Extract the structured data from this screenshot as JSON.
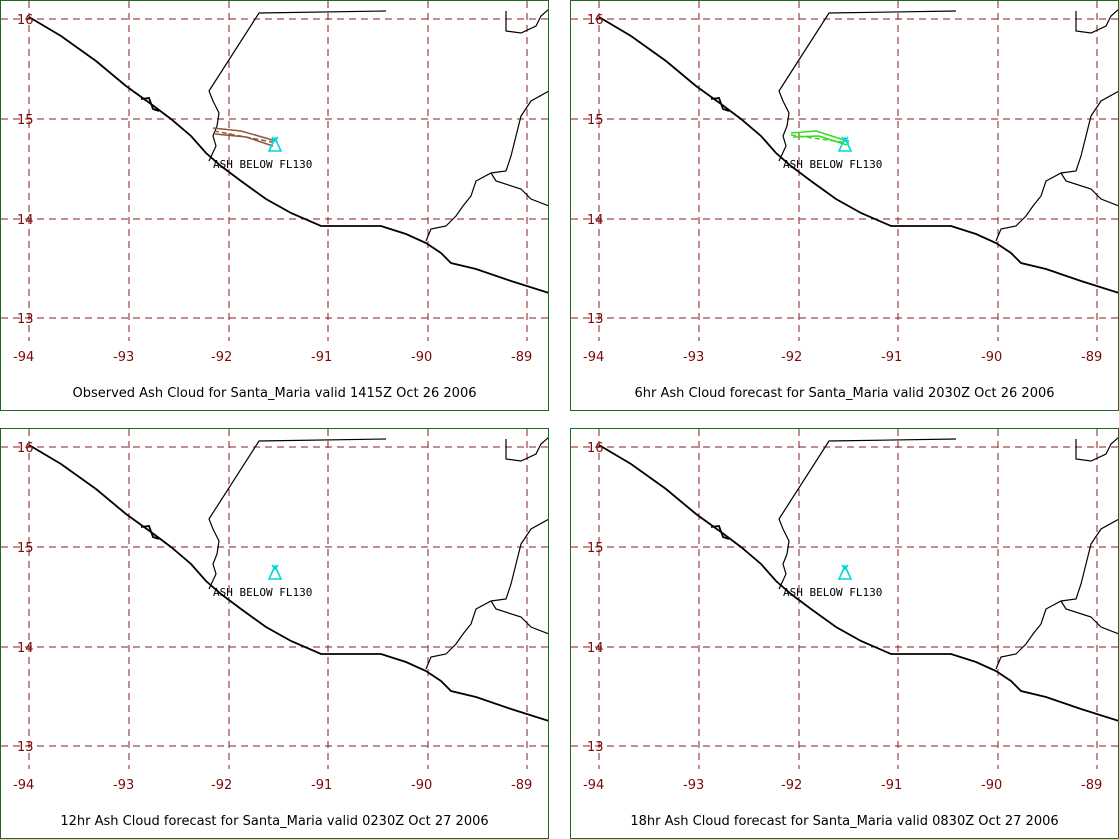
{
  "colors": {
    "grid": "#8b1c1c",
    "tick_label": "#7a0a0a",
    "frame": "#1e6b1e",
    "volcano": "#00d8d8",
    "observed_ash": "#8b5a3c",
    "forecast_ash": "#33dd22"
  },
  "icons": {
    "volcano": "volcano-icon"
  },
  "axes": {
    "x_ticks": [
      "-94",
      "-93",
      "-92",
      "-91",
      "-90",
      "-89"
    ],
    "y_ticks": [
      "16",
      "15",
      "14",
      "13"
    ]
  },
  "ash_label": "ASH BELOW FL130",
  "panels": [
    {
      "id": "observed",
      "caption": "Observed Ash Cloud for Santa_Maria valid 1415Z Oct 26 2006",
      "ash_color": "#8b5a3c",
      "ash_visible": true
    },
    {
      "id": "6hr",
      "caption": "6hr Ash Cloud forecast for Santa_Maria valid 2030Z Oct 26 2006",
      "ash_color": "#33dd22",
      "ash_visible": true
    },
    {
      "id": "12hr",
      "caption": "12hr Ash Cloud forecast for Santa_Maria valid 0230Z Oct 27 2006",
      "ash_color": "",
      "ash_visible": false
    },
    {
      "id": "18hr",
      "caption": "18hr Ash Cloud forecast for Santa_Maria valid 0830Z Oct 27 2006",
      "ash_color": "",
      "ash_visible": false
    }
  ]
}
